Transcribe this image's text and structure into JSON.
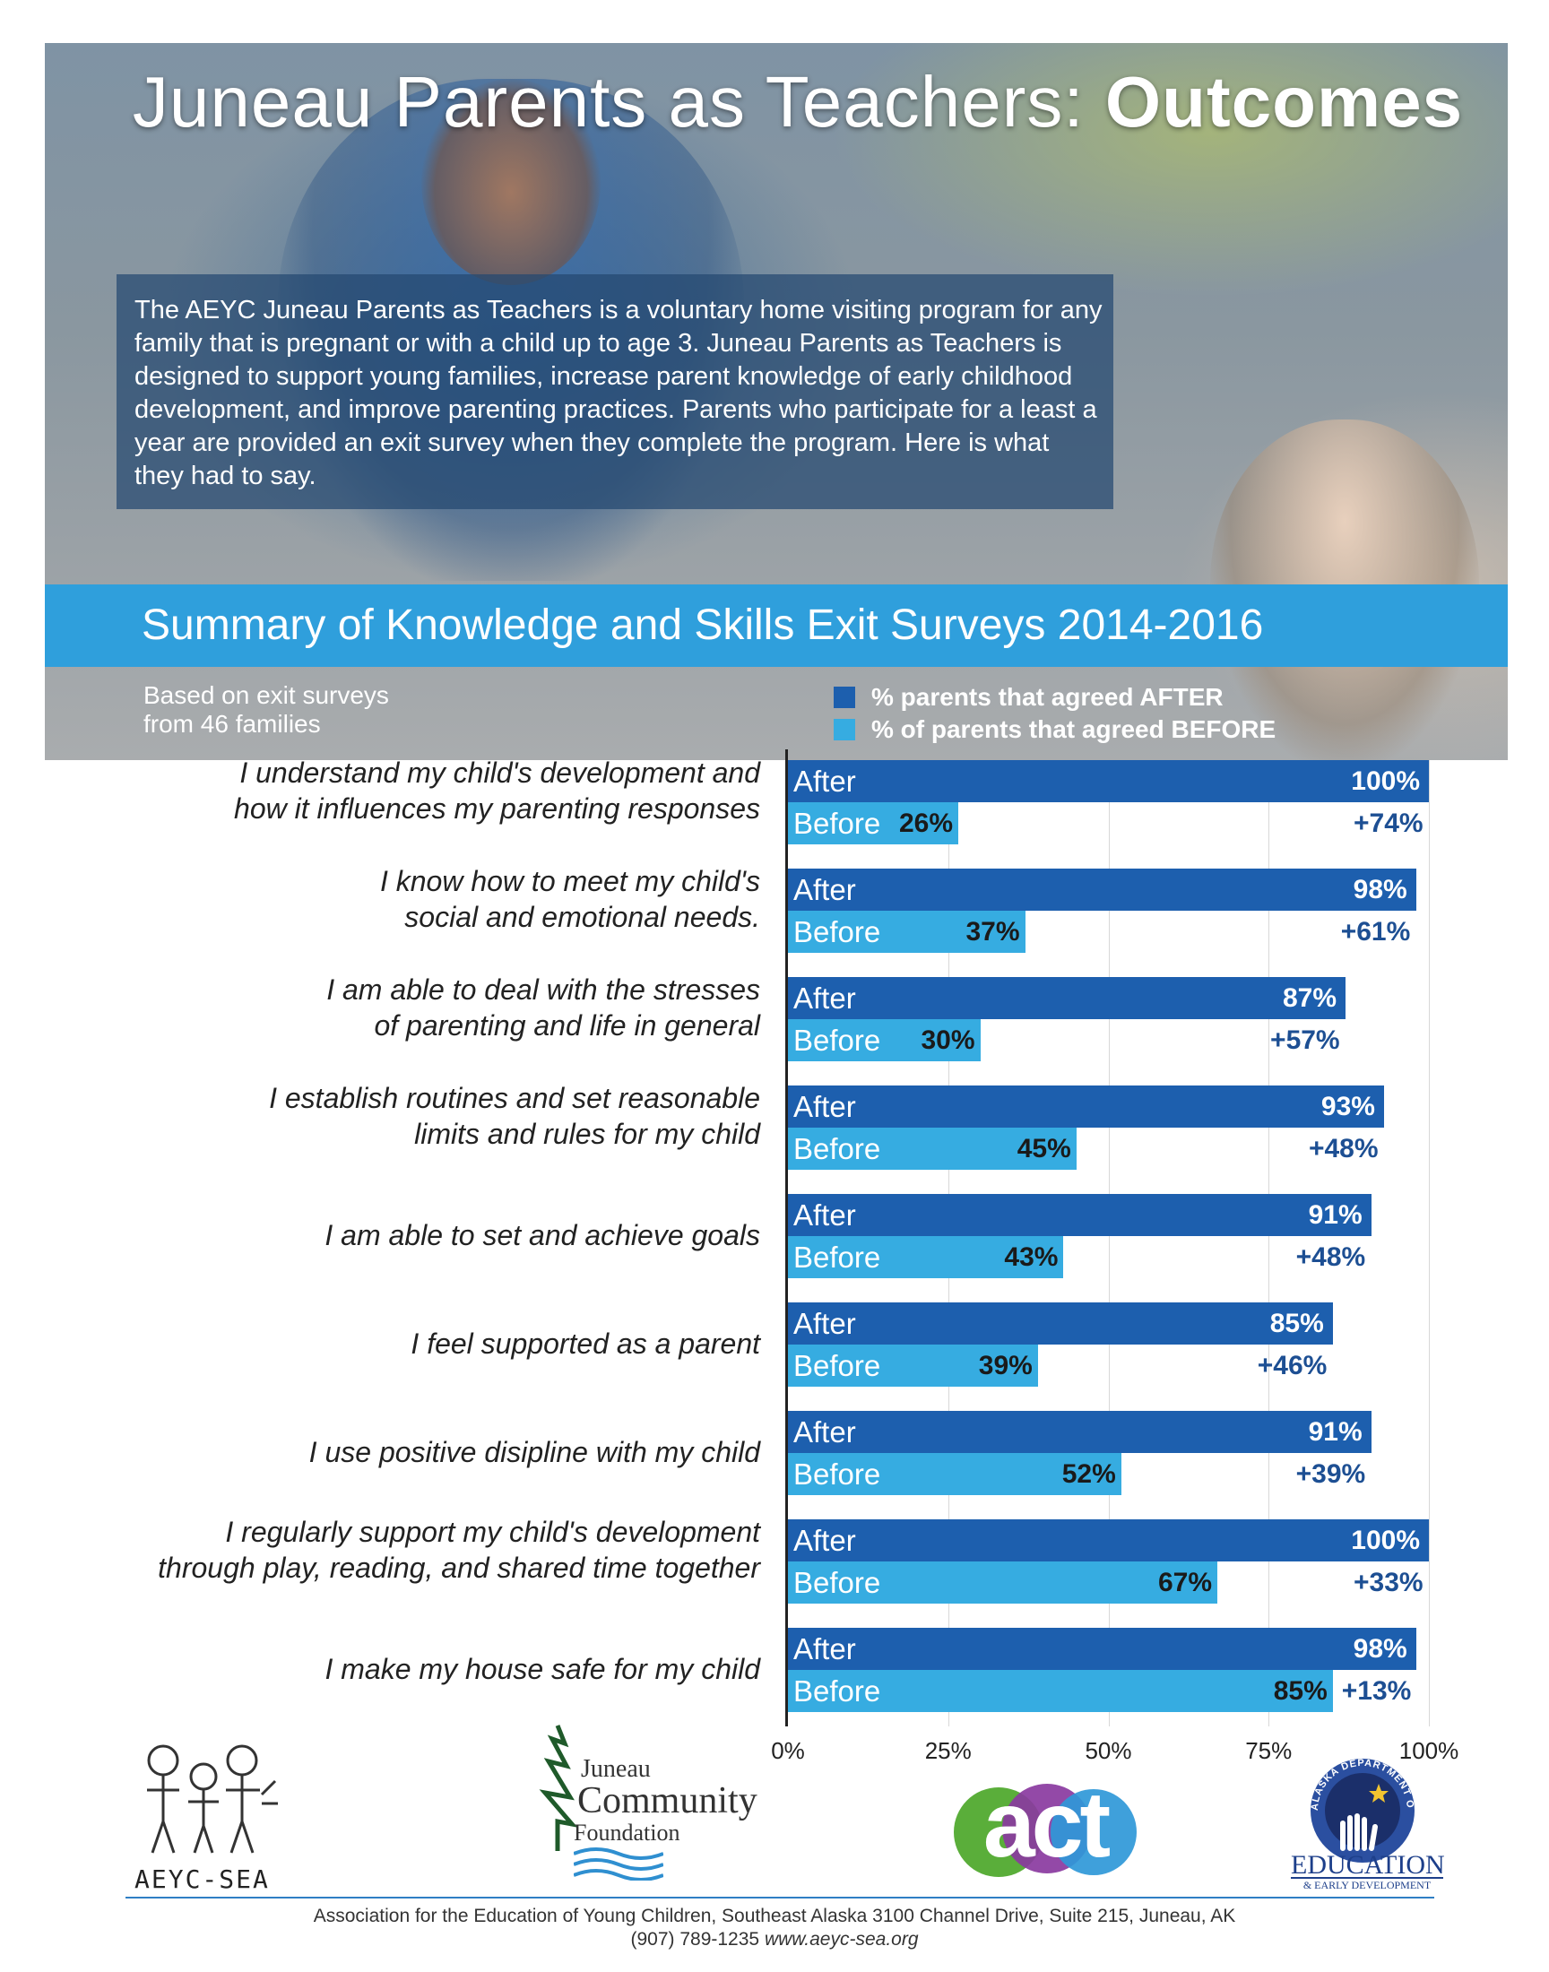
{
  "header": {
    "title_normal": "Juneau Parents as Teachers: ",
    "title_bold": "Outcomes",
    "intro": "The AEYC Juneau Parents as Teachers is a voluntary home visiting program for any family that is pregnant or with a child up to age 3. Juneau Parents as Teachers is designed to support young families, increase parent knowledge of early childhood development, and improve parenting practices. Parents who participate for a least a year are provided an exit survey when they complete the program. Here is what they had to say.",
    "banner": "Summary of Knowledge and Skills Exit Surveys 2014-2016",
    "based_on_line1": "Based on exit surveys",
    "based_on_line2": "from 46 families"
  },
  "colors": {
    "after": "#1d5fae",
    "before": "#36ace1",
    "banner": "#2f9fdc"
  },
  "chart_data": {
    "type": "bar",
    "orientation": "horizontal",
    "title": "Summary of Knowledge and Skills Exit Surveys 2014-2016",
    "xlim": [
      0,
      100
    ],
    "x_ticks": [
      "0%",
      "25%",
      "50%",
      "75%",
      "100%"
    ],
    "legend": [
      {
        "key": "after",
        "label": "% parents that agreed  AFTER"
      },
      {
        "key": "before",
        "label": "% of parents that agreed BEFORE"
      }
    ],
    "legend_position": "top-right",
    "bar_labels": {
      "after": "After",
      "before": "Before"
    },
    "categories": [
      {
        "line1": "I understand my child's development and",
        "line2": "how it influences my parenting responses",
        "after": 100,
        "before": 26,
        "after_label": "100%",
        "before_label": "26%",
        "diff": "+74%"
      },
      {
        "line1": "I know how to meet my child's",
        "line2": "social and emotional needs.",
        "after": 98,
        "before": 37,
        "after_label": "98%",
        "before_label": "37%",
        "diff": "+61%"
      },
      {
        "line1": "I am able to deal with the stresses",
        "line2": "of parenting and life in general",
        "after": 87,
        "before": 30,
        "after_label": "87%",
        "before_label": "30%",
        "diff": "+57%"
      },
      {
        "line1": "I establish routines and set reasonable",
        "line2": "limits and rules for my child",
        "after": 93,
        "before": 45,
        "after_label": "93%",
        "before_label": "45%",
        "diff": "+48%"
      },
      {
        "line1": "I am able to set and achieve goals",
        "line2": "",
        "after": 91,
        "before": 43,
        "after_label": "91%",
        "before_label": "43%",
        "diff": "+48%"
      },
      {
        "line1": "I feel supported as a parent",
        "line2": "",
        "after": 85,
        "before": 39,
        "after_label": "85%",
        "before_label": "39%",
        "diff": "+46%"
      },
      {
        "line1": "I use positive disipline with my child",
        "line2": "",
        "after": 91,
        "before": 52,
        "after_label": "91%",
        "before_label": "52%",
        "diff": "+39%"
      },
      {
        "line1": "I regularly support my child's development",
        "line2": "through play, reading, and shared time together",
        "after": 100,
        "before": 67,
        "after_label": "100%",
        "before_label": "67%",
        "diff": "+33%"
      },
      {
        "line1": "I make my house safe for my child",
        "line2": "",
        "after": 98,
        "before": 85,
        "after_label": "98%",
        "before_label": "85%",
        "diff": "+13%"
      }
    ]
  },
  "logos": {
    "aeyc": "AEYC-SEA",
    "jcf_line1": "Juneau",
    "jcf_line2": "Community",
    "jcf_line3": "Foundation",
    "act": "act",
    "edu_main": "EDUCATION",
    "edu_sub": "& EARLY DEVELOPMENT",
    "edu_arc": "ALASKA DEPARTMENT OF"
  },
  "footer": {
    "line1": "Association for the Education of Young Children, Southeast Alaska  3100 Channel Drive, Suite 215, Juneau, AK",
    "phone": "(907) 789-1235 ",
    "url": "www.aeyc-sea.org"
  }
}
